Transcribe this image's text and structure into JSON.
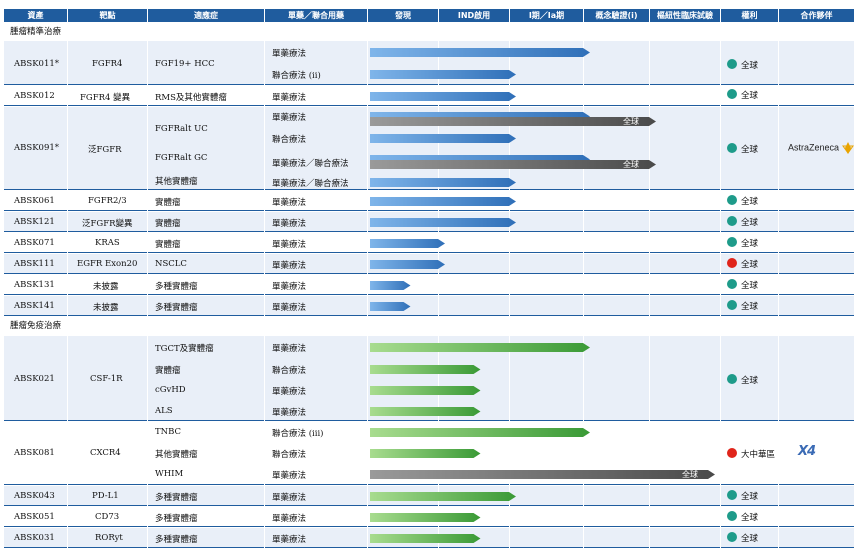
{
  "headers": [
    "資產",
    "靶點",
    "適應症",
    "單藥／聯合用藥",
    "發現",
    "IND啟用",
    "I期／Ia期",
    "概念驗證(i)",
    "樞紐性臨床試驗",
    "權利",
    "合作夥伴"
  ],
  "sections": {
    "precision": "腫瘤精準治療",
    "immuno": "腫瘤免疫治療"
  },
  "colors": {
    "header": "#1f5c9e",
    "blue_bar": "#4a90d9",
    "green_bar": "#5cb84e",
    "grey_bar": "#6b6b6b",
    "row_alt": "#eaf0f8",
    "global_dot": "#1e9b8a",
    "china_dot": "#e0251b"
  },
  "rows": [
    {
      "asset": "ABSK011*",
      "target": "FGFR4",
      "indications": [
        "FGF19+ HCC"
      ],
      "regimens": [
        "單藥療法",
        "聯合療法 (ii)"
      ],
      "rights": "全球",
      "rights_icon": "globe-dot-icon"
    },
    {
      "asset": "ABSK012",
      "target": "FGFR4 變異",
      "indications": [
        "RMS及其他實體瘤"
      ],
      "regimens": [
        "單藥療法"
      ],
      "rights": "全球",
      "rights_icon": "globe-dot-icon"
    },
    {
      "asset": "ABSK091*",
      "target": "泛FGFR",
      "indications": [
        "FGFRalt UC",
        "FGFRalt GC",
        "其他實體瘤"
      ],
      "regimens": [
        "單藥療法",
        "聯合療法",
        "單藥療法／聯合療法",
        "單藥療法／聯合療法"
      ],
      "rights": "全球",
      "rights_icon": "globe-dot-icon",
      "partner": "AstraZeneca",
      "bar_labels": [
        "全球",
        "全球"
      ]
    },
    {
      "asset": "ABSK061",
      "target": "FGFR2/3",
      "indications": [
        "實體瘤"
      ],
      "regimens": [
        "單藥療法"
      ],
      "rights": "全球",
      "rights_icon": "globe-dot-icon"
    },
    {
      "asset": "ABSK121",
      "target": "泛FGFR變異",
      "indications": [
        "實體瘤"
      ],
      "regimens": [
        "單藥療法"
      ],
      "rights": "全球",
      "rights_icon": "globe-dot-icon"
    },
    {
      "asset": "ABSK071",
      "target": "KRAS",
      "indications": [
        "實體瘤"
      ],
      "regimens": [
        "單藥療法"
      ],
      "rights": "全球",
      "rights_icon": "globe-dot-icon"
    },
    {
      "asset": "ABSK111",
      "target": "EGFR Exon20",
      "indications": [
        "NSCLC"
      ],
      "regimens": [
        "單藥療法"
      ],
      "rights": "全球",
      "rights_icon": "globe-dot-icon"
    },
    {
      "asset": "ABSK131",
      "target": "未披露",
      "indications": [
        "多種實體瘤"
      ],
      "regimens": [
        "單藥療法"
      ],
      "rights": "全球",
      "rights_icon": "globe-dot-icon"
    },
    {
      "asset": "ABSK141",
      "target": "未披露",
      "indications": [
        "多種實體瘤"
      ],
      "regimens": [
        "單藥療法"
      ],
      "rights": "全球",
      "rights_icon": "globe-dot-icon"
    },
    {
      "asset": "ABSK021",
      "target": "CSF-1R",
      "indications": [
        "TGCT及實體瘤",
        "實體瘤",
        "cGvHD",
        "ALS"
      ],
      "regimens": [
        "單藥療法",
        "聯合療法",
        "單藥療法",
        "單藥療法"
      ],
      "rights": "全球",
      "rights_icon": "globe-dot-icon"
    },
    {
      "asset": "ABSK081",
      "target": "CXCR4",
      "indications": [
        "TNBC",
        "其他實體瘤",
        "WHIM"
      ],
      "regimens": [
        "聯合療法 (iii)",
        "聯合療法",
        "單藥療法"
      ],
      "rights": "大中華區",
      "rights_icon": "china-dot-icon",
      "partner": "X4",
      "bar_labels": [
        "全球"
      ]
    },
    {
      "asset": "ABSK043",
      "target": "PD-L1",
      "indications": [
        "多種實體瘤"
      ],
      "regimens": [
        "單藥療法"
      ],
      "rights": "全球",
      "rights_icon": "globe-dot-icon"
    },
    {
      "asset": "ABSK051",
      "target": "CD73",
      "indications": [
        "多種實體瘤"
      ],
      "regimens": [
        "單藥療法"
      ],
      "rights": "全球",
      "rights_icon": "globe-dot-icon"
    },
    {
      "asset": "ABSK031",
      "target": "RORyt",
      "indications": [
        "多種實體瘤"
      ],
      "regimens": [
        "單藥療法"
      ],
      "rights": "全球",
      "rights_icon": "globe-dot-icon"
    }
  ],
  "progress": {
    "stages": [
      "發現",
      "IND啟用",
      "I期／Ia期",
      "概念驗證(i)",
      "樞紐性臨床試驗"
    ],
    "bars": [
      {
        "asset": "ABSK011*",
        "regimen": "單藥療法",
        "stage_reached": 3.0,
        "color": "blue"
      },
      {
        "asset": "ABSK011*",
        "regimen": "聯合療法 (ii)",
        "stage_reached": 2.0,
        "color": "blue"
      },
      {
        "asset": "ABSK012",
        "regimen": "單藥療法",
        "stage_reached": 2.0,
        "color": "blue"
      },
      {
        "asset": "ABSK091*",
        "regimen": "單藥療法",
        "stage_reached": 3.0,
        "color": "blue"
      },
      {
        "asset": "ABSK091*",
        "regimen": "單藥療法",
        "stage_reached": 4.0,
        "color": "grey",
        "label": "全球"
      },
      {
        "asset": "ABSK091*",
        "regimen": "聯合療法",
        "stage_reached": 2.0,
        "color": "blue"
      },
      {
        "asset": "ABSK091*",
        "regimen": "單藥療法／聯合療法",
        "stage_reached": 3.0,
        "color": "blue"
      },
      {
        "asset": "ABSK091*",
        "regimen": "單藥療法／聯合療法",
        "stage_reached": 4.0,
        "color": "grey",
        "label": "全球"
      },
      {
        "asset": "ABSK091*",
        "regimen": "單藥療法／聯合療法",
        "stage_reached": 2.0,
        "color": "blue"
      },
      {
        "asset": "ABSK061",
        "regimen": "單藥療法",
        "stage_reached": 2.0,
        "color": "blue"
      },
      {
        "asset": "ABSK121",
        "regimen": "單藥療法",
        "stage_reached": 2.0,
        "color": "blue"
      },
      {
        "asset": "ABSK071",
        "regimen": "單藥療法",
        "stage_reached": 1.0,
        "color": "blue"
      },
      {
        "asset": "ABSK111",
        "regimen": "單藥療法",
        "stage_reached": 1.0,
        "color": "blue"
      },
      {
        "asset": "ABSK131",
        "regimen": "單藥療法",
        "stage_reached": 0.5,
        "color": "blue"
      },
      {
        "asset": "ABSK141",
        "regimen": "單藥療法",
        "stage_reached": 0.5,
        "color": "blue"
      },
      {
        "asset": "ABSK021",
        "regimen": "單藥療法",
        "stage_reached": 3.0,
        "color": "green"
      },
      {
        "asset": "ABSK021",
        "regimen": "聯合療法",
        "stage_reached": 1.5,
        "color": "green"
      },
      {
        "asset": "ABSK021",
        "regimen": "單藥療法",
        "stage_reached": 1.5,
        "color": "green"
      },
      {
        "asset": "ABSK021",
        "regimen": "單藥療法",
        "stage_reached": 1.5,
        "color": "green"
      },
      {
        "asset": "ABSK081",
        "regimen": "聯合療法 (iii)",
        "stage_reached": 3.0,
        "color": "green"
      },
      {
        "asset": "ABSK081",
        "regimen": "聯合療法",
        "stage_reached": 1.5,
        "color": "green"
      },
      {
        "asset": "ABSK081",
        "regimen": "單藥療法",
        "stage_reached": 5.0,
        "color": "grey",
        "label": "全球"
      },
      {
        "asset": "ABSK043",
        "regimen": "單藥療法",
        "stage_reached": 2.0,
        "color": "green"
      },
      {
        "asset": "ABSK051",
        "regimen": "單藥療法",
        "stage_reached": 1.5,
        "color": "green"
      },
      {
        "asset": "ABSK031",
        "regimen": "單藥療法",
        "stage_reached": 1.5,
        "color": "green"
      }
    ]
  }
}
